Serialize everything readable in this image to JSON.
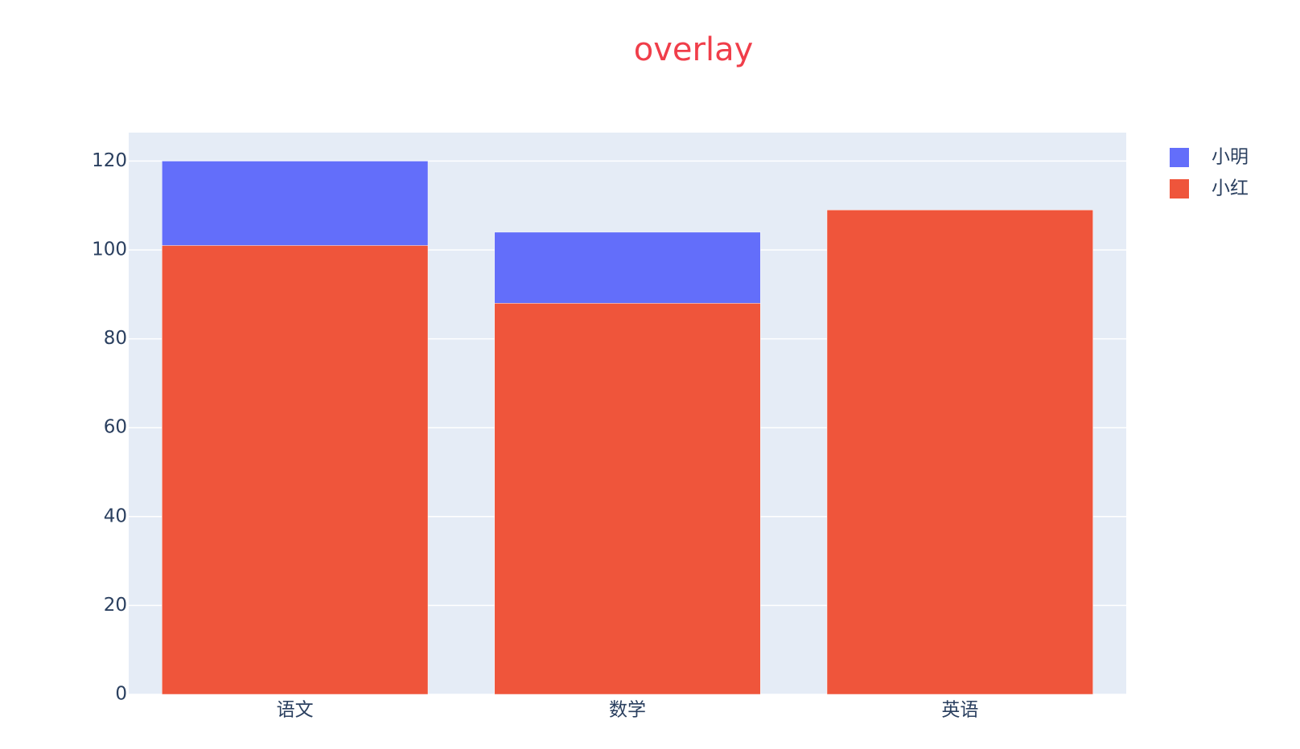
{
  "chart_data": {
    "type": "bar",
    "barmode": "overlay",
    "title": "overlay",
    "categories": [
      "语文",
      "数学",
      "英语"
    ],
    "series": [
      {
        "name": "小明",
        "color": "#636efa",
        "values": [
          120,
          104,
          null
        ]
      },
      {
        "name": "小红",
        "color": "#ef553b",
        "values": [
          101,
          88,
          109
        ]
      }
    ],
    "ylim": [
      0,
      126.4
    ],
    "yticks": [
      0,
      20,
      40,
      60,
      80,
      100,
      120
    ],
    "grid": true,
    "legend": "top-right"
  }
}
